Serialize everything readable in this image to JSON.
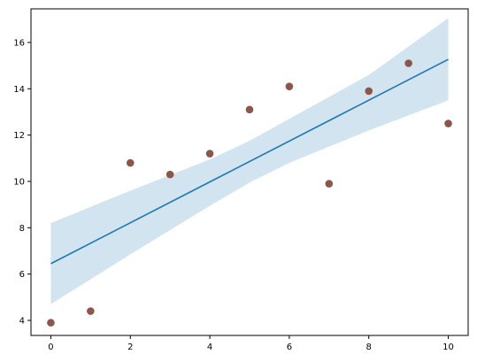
{
  "chart_data": {
    "type": "scatter",
    "title": "",
    "xlabel": "",
    "ylabel": "",
    "xlim": [
      -0.5,
      10.5
    ],
    "ylim": [
      3.35,
      17.45
    ],
    "grid": false,
    "legend": "none",
    "x_ticks": [
      "0",
      "2",
      "4",
      "6",
      "8",
      "10"
    ],
    "y_ticks": [
      "4",
      "6",
      "8",
      "10",
      "12",
      "14",
      "16"
    ],
    "x_tick_values": [
      0,
      2,
      4,
      6,
      8,
      10
    ],
    "y_tick_values": [
      4,
      6,
      8,
      10,
      12,
      14,
      16
    ],
    "series": [
      {
        "kind": "points",
        "color": "#8c564b",
        "x": [
          0,
          1,
          2,
          3,
          4,
          5,
          6,
          7,
          8,
          9,
          10
        ],
        "y": [
          3.9,
          4.4,
          10.8,
          10.3,
          11.2,
          13.1,
          14.1,
          9.9,
          13.9,
          15.1,
          12.5
        ]
      },
      {
        "kind": "fit-line",
        "color": "#1f77b4",
        "x": [
          0,
          10
        ],
        "y": [
          6.45,
          15.27
        ]
      },
      {
        "kind": "confidence-band",
        "color": "#1f77b4",
        "opacity": 0.2,
        "x": [
          0,
          2,
          4,
          5,
          6,
          8,
          10
        ],
        "lower": [
          4.7,
          6.85,
          8.95,
          9.95,
          10.8,
          12.2,
          13.5
        ],
        "upper": [
          8.2,
          9.6,
          10.95,
          11.75,
          12.7,
          14.6,
          17.05
        ]
      }
    ]
  }
}
